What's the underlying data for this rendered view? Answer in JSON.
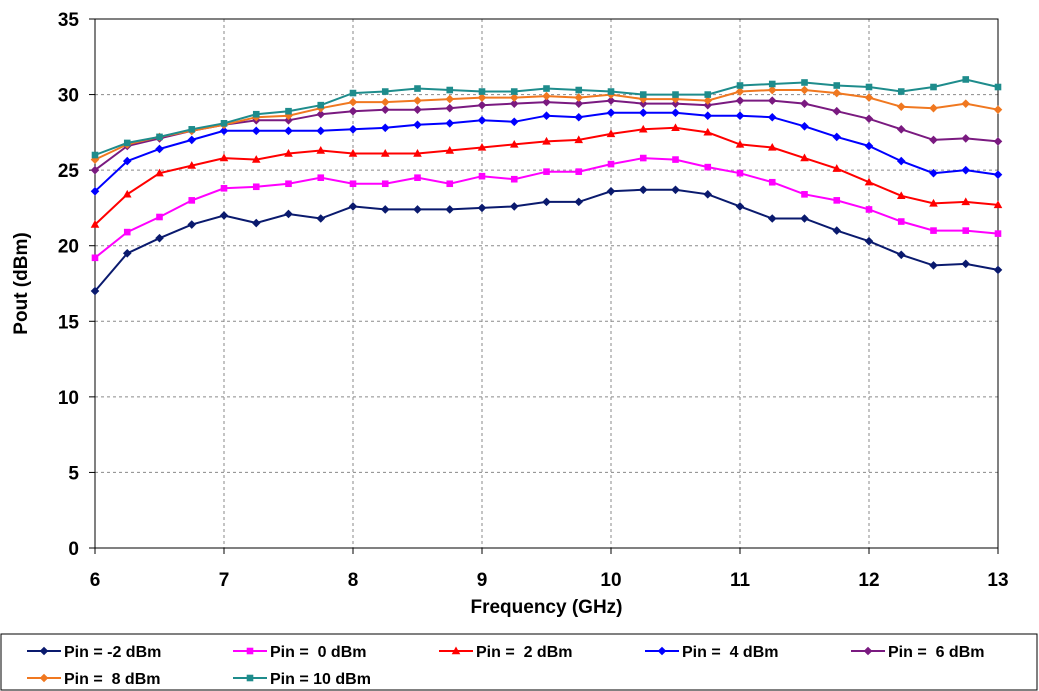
{
  "chart_data": {
    "type": "line",
    "title": "",
    "xlabel": "Frequency (GHz)",
    "ylabel": "Pout (dBm)",
    "xlim": [
      6,
      13
    ],
    "ylim": [
      0,
      35
    ],
    "xticks": [
      "6",
      "7",
      "8",
      "9",
      "10",
      "11",
      "12",
      "13"
    ],
    "yticks": [
      "0",
      "5",
      "10",
      "15",
      "20",
      "25",
      "30",
      "35"
    ],
    "grid": true,
    "legend_position": "bottom",
    "x": [
      6,
      6.25,
      6.5,
      6.75,
      7,
      7.25,
      7.5,
      7.75,
      8,
      8.25,
      8.5,
      8.75,
      9,
      9.25,
      9.5,
      9.75,
      10,
      10.25,
      10.5,
      10.75,
      11,
      11.25,
      11.5,
      11.75,
      12,
      12.25,
      12.5,
      12.75,
      13
    ],
    "series": [
      {
        "name": "Pin = -2 dBm",
        "color": "#0a1a6e",
        "marker": "diamond",
        "values": [
          17.0,
          19.5,
          20.5,
          21.4,
          22.0,
          21.5,
          22.1,
          21.8,
          22.6,
          22.4,
          22.4,
          22.4,
          22.5,
          22.6,
          22.9,
          22.9,
          23.6,
          23.7,
          23.7,
          23.4,
          22.6,
          21.8,
          21.8,
          21.0,
          20.3,
          19.4,
          18.7,
          18.8,
          18.4
        ]
      },
      {
        "name": "Pin =  0 dBm",
        "color": "#ff00ff",
        "marker": "square",
        "values": [
          19.2,
          20.9,
          21.9,
          23.0,
          23.8,
          23.9,
          24.1,
          24.5,
          24.1,
          24.1,
          24.5,
          24.1,
          24.6,
          24.4,
          24.9,
          24.9,
          25.4,
          25.8,
          25.7,
          25.2,
          24.8,
          24.2,
          23.4,
          23.0,
          22.4,
          21.6,
          21.0,
          21.0,
          20.8
        ]
      },
      {
        "name": "Pin =  2 dBm",
        "color": "#ff0000",
        "marker": "triangle",
        "values": [
          21.4,
          23.4,
          24.8,
          25.3,
          25.8,
          25.7,
          26.1,
          26.3,
          26.1,
          26.1,
          26.1,
          26.3,
          26.5,
          26.7,
          26.9,
          27.0,
          27.4,
          27.7,
          27.8,
          27.5,
          26.7,
          26.5,
          25.8,
          25.1,
          24.2,
          23.3,
          22.8,
          22.9,
          22.7
        ]
      },
      {
        "name": "Pin =  4 dBm",
        "color": "#0000ff",
        "marker": "diamond",
        "values": [
          23.6,
          25.6,
          26.4,
          27.0,
          27.6,
          27.6,
          27.6,
          27.6,
          27.7,
          27.8,
          28.0,
          28.1,
          28.3,
          28.2,
          28.6,
          28.5,
          28.8,
          28.8,
          28.8,
          28.6,
          28.6,
          28.5,
          27.9,
          27.2,
          26.6,
          25.6,
          24.8,
          25.0,
          24.7
        ]
      },
      {
        "name": "Pin =  6 dBm",
        "color": "#7a1a80",
        "marker": "diamond",
        "values": [
          25.0,
          26.6,
          27.1,
          27.6,
          28.0,
          28.3,
          28.3,
          28.7,
          28.9,
          29.0,
          29.0,
          29.1,
          29.3,
          29.4,
          29.5,
          29.4,
          29.6,
          29.4,
          29.4,
          29.3,
          29.6,
          29.6,
          29.4,
          28.9,
          28.4,
          27.7,
          27.0,
          27.1,
          26.9
        ]
      },
      {
        "name": "Pin =  8 dBm",
        "color": "#f07820",
        "marker": "diamond",
        "values": [
          25.7,
          26.7,
          27.2,
          27.6,
          28.0,
          28.5,
          28.6,
          29.1,
          29.5,
          29.5,
          29.6,
          29.7,
          29.8,
          29.8,
          29.9,
          29.8,
          30.0,
          29.7,
          29.7,
          29.6,
          30.2,
          30.3,
          30.3,
          30.1,
          29.8,
          29.2,
          29.1,
          29.4,
          29.0
        ]
      },
      {
        "name": "Pin = 10 dBm",
        "color": "#1e8c8c",
        "marker": "square",
        "values": [
          26.0,
          26.8,
          27.2,
          27.7,
          28.1,
          28.7,
          28.9,
          29.3,
          30.1,
          30.2,
          30.4,
          30.3,
          30.2,
          30.2,
          30.4,
          30.3,
          30.2,
          30.0,
          30.0,
          30.0,
          30.6,
          30.7,
          30.8,
          30.6,
          30.5,
          30.2,
          30.5,
          31.0,
          30.5
        ]
      }
    ]
  }
}
